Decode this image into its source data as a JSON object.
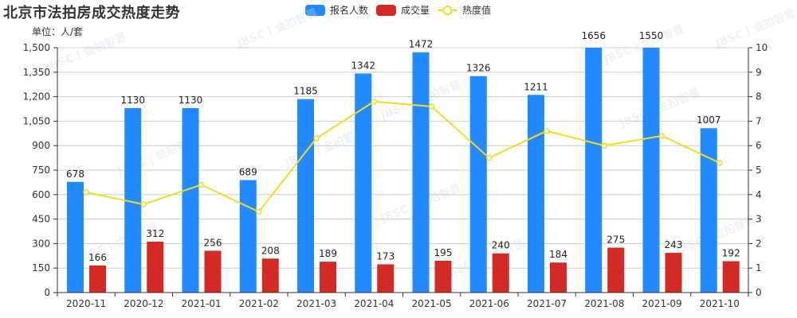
{
  "chart_title": "北京市法拍房成交热度走势",
  "unit_label": "单位：人/套",
  "legend": [
    {
      "name": "报名人数",
      "color": "#2389ff",
      "type": "bar"
    },
    {
      "name": "成交量",
      "color": "#d42a26",
      "type": "bar"
    },
    {
      "name": "热度值",
      "color": "#f2dd1d",
      "type": "line"
    }
  ],
  "watermark_text": "JBSC | 金拍智晋",
  "chart_data": {
    "type": "bar",
    "title": "北京市法拍房成交热度走势",
    "subtitle": "单位：人/套",
    "categories": [
      "2020-11",
      "2020-12",
      "2021-01",
      "2021-02",
      "2021-03",
      "2021-04",
      "2021-05",
      "2021-06",
      "2021-07",
      "2021-08",
      "2021-09",
      "2021-10"
    ],
    "series": [
      {
        "name": "报名人数",
        "type": "bar",
        "axis": "left",
        "color": "#2389ff",
        "values": [
          678,
          1130,
          1130,
          689,
          1185,
          1342,
          1472,
          1326,
          1211,
          1656,
          1550,
          1007
        ]
      },
      {
        "name": "成交量",
        "type": "bar",
        "axis": "left",
        "color": "#d42a26",
        "values": [
          166,
          312,
          256,
          208,
          189,
          173,
          195,
          240,
          184,
          275,
          243,
          192
        ]
      },
      {
        "name": "热度值",
        "type": "line",
        "axis": "right",
        "color": "#f2dd1d",
        "values": [
          4.1,
          3.6,
          4.4,
          3.3,
          6.3,
          7.8,
          7.6,
          5.5,
          6.6,
          6.0,
          6.4,
          5.3
        ]
      }
    ],
    "left_axis": {
      "ylim": [
        0,
        1500
      ],
      "ticks": [
        "0",
        "150",
        "300",
        "450",
        "600",
        "750",
        "900",
        "1,050",
        "1,200",
        "1,350",
        "1,500"
      ]
    },
    "right_axis": {
      "ylim": [
        0,
        10
      ],
      "ticks": [
        "0",
        "1",
        "2",
        "3",
        "4",
        "5",
        "6",
        "7",
        "8",
        "9",
        "10"
      ]
    },
    "xlabel": "",
    "ylabel": "人/套",
    "grid": true,
    "legend_position": "top"
  }
}
